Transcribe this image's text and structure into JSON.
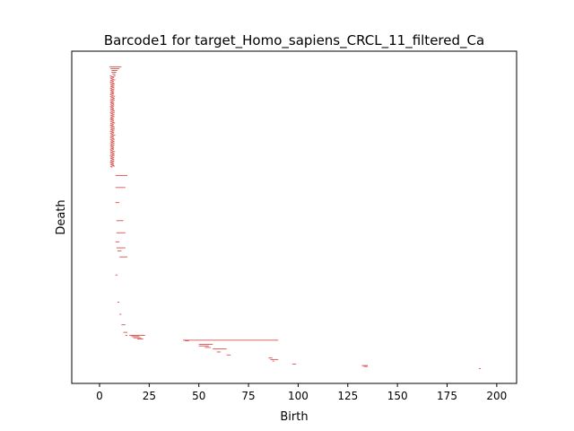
{
  "chart_data": {
    "type": "barcode",
    "title": "Barcode1 for target_Homo_sapiens_CRCL_11_filtered_Ca",
    "xlabel": "Birth",
    "ylabel": "Death",
    "xlim": [
      -14,
      210
    ],
    "xticks": [
      0,
      25,
      50,
      75,
      100,
      125,
      150,
      175,
      200
    ],
    "yticks_visible": false,
    "grid": false,
    "bar_color": "#d9534f",
    "bar_count": 640,
    "bars": [
      {
        "birth": 5,
        "death": 11
      },
      {
        "birth": 5.5,
        "death": 10
      },
      {
        "birth": 6,
        "death": 9
      },
      {
        "birth": 6,
        "death": 8.5
      },
      {
        "birth": 6.5,
        "death": 8
      },
      {
        "birth": 7,
        "death": 8
      },
      {
        "birth": 8,
        "death": 14
      },
      {
        "birth": 8,
        "death": 13
      },
      {
        "birth": 8,
        "death": 10
      },
      {
        "birth": 8.5,
        "death": 12
      },
      {
        "birth": 8.5,
        "death": 13
      },
      {
        "birth": 8,
        "death": 10
      },
      {
        "birth": 8.5,
        "death": 13
      },
      {
        "birth": 9,
        "death": 11
      },
      {
        "birth": 10,
        "death": 14
      },
      {
        "birth": 8,
        "death": 9
      },
      {
        "birth": 9,
        "death": 10
      },
      {
        "birth": 10,
        "death": 11
      },
      {
        "birth": 11,
        "death": 13
      },
      {
        "birth": 12,
        "death": 14
      },
      {
        "birth": 13,
        "death": 14
      },
      {
        "birth": 15,
        "death": 23
      },
      {
        "birth": 16,
        "death": 20
      },
      {
        "birth": 17,
        "death": 21
      },
      {
        "birth": 19,
        "death": 22
      },
      {
        "birth": 42,
        "death": 90
      },
      {
        "birth": 43,
        "death": 45
      },
      {
        "birth": 50,
        "death": 57
      },
      {
        "birth": 50,
        "death": 55
      },
      {
        "birth": 53,
        "death": 56
      },
      {
        "birth": 57,
        "death": 64
      },
      {
        "birth": 59,
        "death": 61
      },
      {
        "birth": 64,
        "death": 66
      },
      {
        "birth": 85,
        "death": 87
      },
      {
        "birth": 86,
        "death": 90
      },
      {
        "birth": 87,
        "death": 88
      },
      {
        "birth": 97,
        "death": 99
      },
      {
        "birth": 132,
        "death": 135
      },
      {
        "birth": 133,
        "death": 135
      },
      {
        "birth": 191,
        "death": 192
      }
    ]
  }
}
